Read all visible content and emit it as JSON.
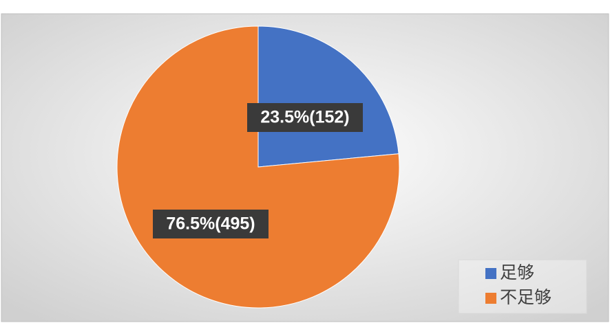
{
  "chart_data": {
    "type": "pie",
    "categories": [
      "足够",
      "不足够"
    ],
    "values": [
      23.5,
      76.5
    ],
    "value_labels": [
      "23.5%(152)",
      "76.5%(495)"
    ],
    "colors": [
      "#4472c4",
      "#ed7d31"
    ],
    "legend": "lower right"
  }
}
